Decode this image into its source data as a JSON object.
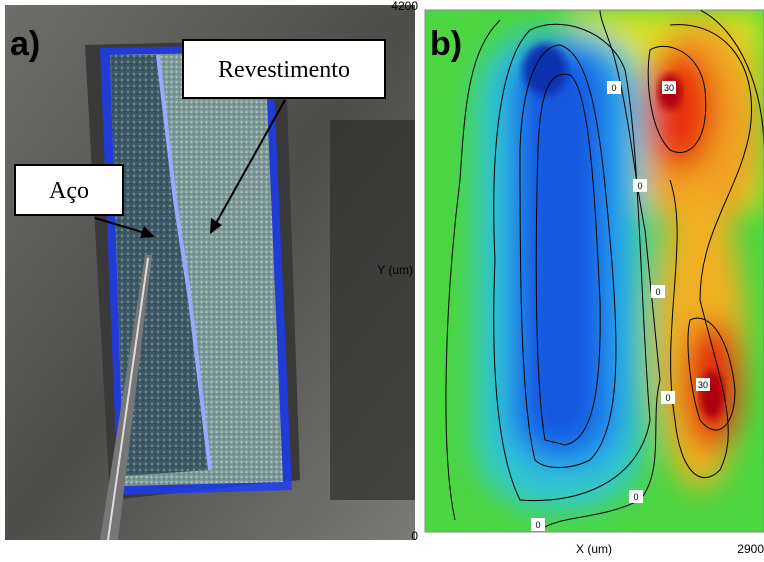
{
  "panel_a": {
    "label": "a)",
    "annotations": [
      "Revestimento",
      "Aço"
    ]
  },
  "panel_b": {
    "label": "b)",
    "y_axis": {
      "label": "Y (um)",
      "max": 4200,
      "min": 0
    },
    "x_axis": {
      "label": "X (um)",
      "max": 2900
    },
    "contour_labels": [
      "0",
      "30",
      "0",
      "0",
      "0",
      "30",
      "0",
      "0"
    ]
  }
}
